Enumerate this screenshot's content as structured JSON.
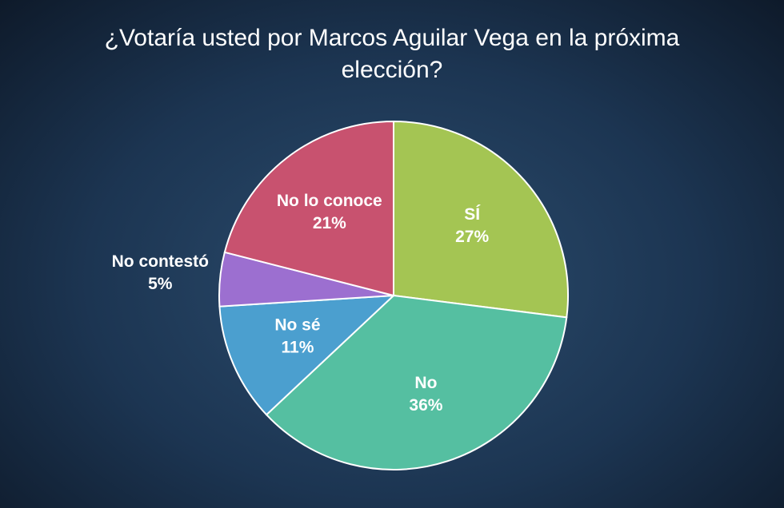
{
  "chart_data": {
    "type": "pie",
    "title": "¿Votaría usted por Marcos Aguilar Vega en la próxima elección?",
    "categories": [
      "SÍ",
      "No",
      "No sé",
      "No contestó",
      "No lo conoce"
    ],
    "values": [
      27,
      36,
      11,
      5,
      21
    ],
    "value_labels": [
      "27%",
      "36%",
      "11%",
      "5%",
      "21%"
    ],
    "colors": [
      "#a4c553",
      "#55bfa1",
      "#4b9fcf",
      "#9c6fd0",
      "#c8526f"
    ]
  }
}
